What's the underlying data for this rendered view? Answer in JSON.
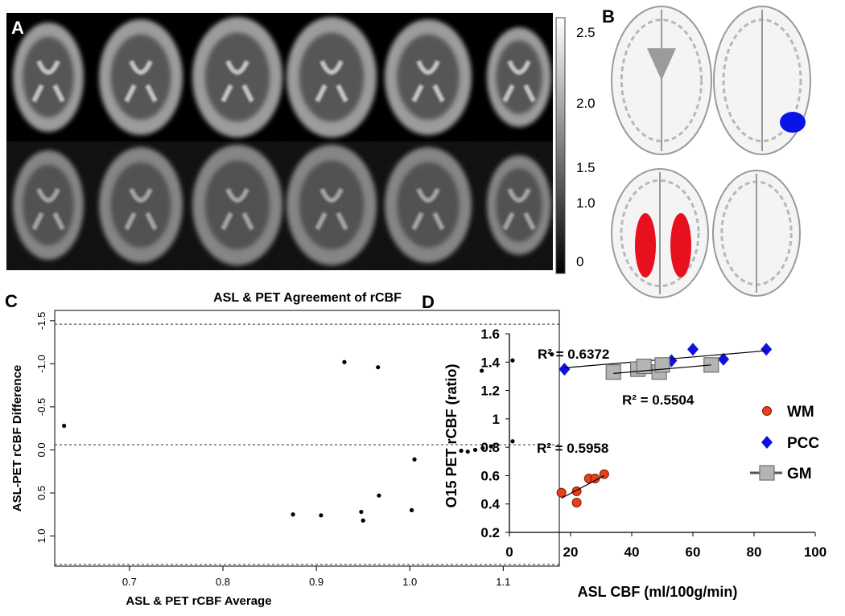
{
  "panels": {
    "A": {
      "letter": "A",
      "colorbar_ticks": [
        "2.5",
        "2.0",
        "1.5",
        "1.0",
        "0"
      ]
    },
    "B": {
      "letter": "B",
      "roi_colors": {
        "pcc": "#0a14e6",
        "wm": "#e8101e"
      }
    },
    "C": {
      "letter": "C",
      "title": "ASL & PET Agreement of rCBF",
      "xlabel": "ASL & PET rCBF Average",
      "ylabel": "ASL-PET rCBF Difference"
    },
    "D": {
      "letter": "D",
      "xlabel": "ASL CBF (ml/100g/min)",
      "ylabel": "O15 PET rCBF (ratio)",
      "r2": {
        "pcc": "R² = 0.6372",
        "gm": "R² = 0.5504",
        "wm": "R² = 0.5958"
      },
      "legend": [
        "WM",
        "PCC",
        "GM"
      ]
    }
  },
  "chart_data": [
    {
      "type": "scatter",
      "panel": "C",
      "title": "ASL & PET Agreement of rCBF",
      "xlabel": "ASL & PET rCBF Average",
      "ylabel": "ASL-PET rCBF Difference",
      "xlim": [
        0.62,
        1.16
      ],
      "ylim": [
        1.35,
        -1.62
      ],
      "xticks": [
        "0.7",
        "0.8",
        "0.9",
        "1.0",
        "1.1"
      ],
      "xtick_values": [
        0.7,
        0.8,
        0.9,
        1.0,
        1.1
      ],
      "yticks": [
        "-1.5",
        "-1.0",
        "-0.5",
        "0.0",
        "0.5",
        "1.0"
      ],
      "ytick_values": [
        -1.5,
        -1.0,
        -0.5,
        0.0,
        0.5,
        1.0
      ],
      "reference_lines": [
        -1.46,
        -0.06,
        1.33
      ],
      "points": [
        [
          0.63,
          -0.28
        ],
        [
          0.93,
          -1.02
        ],
        [
          0.966,
          -0.96
        ],
        [
          1.077,
          -0.92
        ],
        [
          1.11,
          -1.04
        ],
        [
          1.152,
          -1.11
        ],
        [
          1.11,
          -0.1
        ],
        [
          1.055,
          0.01
        ],
        [
          1.062,
          0.02
        ],
        [
          1.07,
          0.0
        ],
        [
          1.078,
          -0.02
        ],
        [
          1.087,
          -0.04
        ],
        [
          1.005,
          0.11
        ],
        [
          0.967,
          0.53
        ],
        [
          1.002,
          0.7
        ],
        [
          0.875,
          0.75
        ],
        [
          0.905,
          0.76
        ],
        [
          0.948,
          0.72
        ],
        [
          0.95,
          0.82
        ]
      ]
    },
    {
      "type": "scatter",
      "panel": "D",
      "xlabel": "ASL CBF (ml/100g/min)",
      "ylabel": "O15 PET rCBF (ratio)",
      "xlim": [
        0,
        100
      ],
      "ylim": [
        0.2,
        1.6
      ],
      "xticks": [
        "0",
        "20",
        "40",
        "60",
        "80",
        "100"
      ],
      "xtick_values": [
        0,
        20,
        40,
        60,
        80,
        100
      ],
      "yticks": [
        "0.2",
        "0.4",
        "0.6",
        "0.8",
        "1",
        "1.2",
        "1.4",
        "1.6"
      ],
      "ytick_values": [
        0.2,
        0.4,
        0.6,
        0.8,
        1.0,
        1.2,
        1.4,
        1.6
      ],
      "series": [
        {
          "name": "WM",
          "color": "#e8401c",
          "marker": "circle",
          "points": [
            [
              17,
              0.48
            ],
            [
              22,
              0.49
            ],
            [
              22,
              0.41
            ],
            [
              26,
              0.58
            ],
            [
              28,
              0.58
            ],
            [
              31,
              0.61
            ]
          ],
          "trend": [
            [
              17,
              0.44
            ],
            [
              31,
              0.6
            ]
          ]
        },
        {
          "name": "PCC",
          "color": "#1010e0",
          "marker": "diamond",
          "points": [
            [
              18,
              1.35
            ],
            [
              50,
              1.38
            ],
            [
              53,
              1.41
            ],
            [
              60,
              1.49
            ],
            [
              70,
              1.42
            ],
            [
              84,
              1.49
            ]
          ],
          "trend": [
            [
              18,
              1.36
            ],
            [
              84,
              1.48
            ]
          ]
        },
        {
          "name": "GM",
          "color": "#b4b4b4",
          "marker": "square",
          "points": [
            [
              34,
              1.33
            ],
            [
              42,
              1.35
            ],
            [
              44,
              1.37
            ],
            [
              49,
              1.33
            ],
            [
              50,
              1.38
            ],
            [
              66,
              1.38
            ]
          ],
          "trend": [
            [
              34,
              1.32
            ],
            [
              66,
              1.38
            ]
          ]
        }
      ]
    }
  ]
}
